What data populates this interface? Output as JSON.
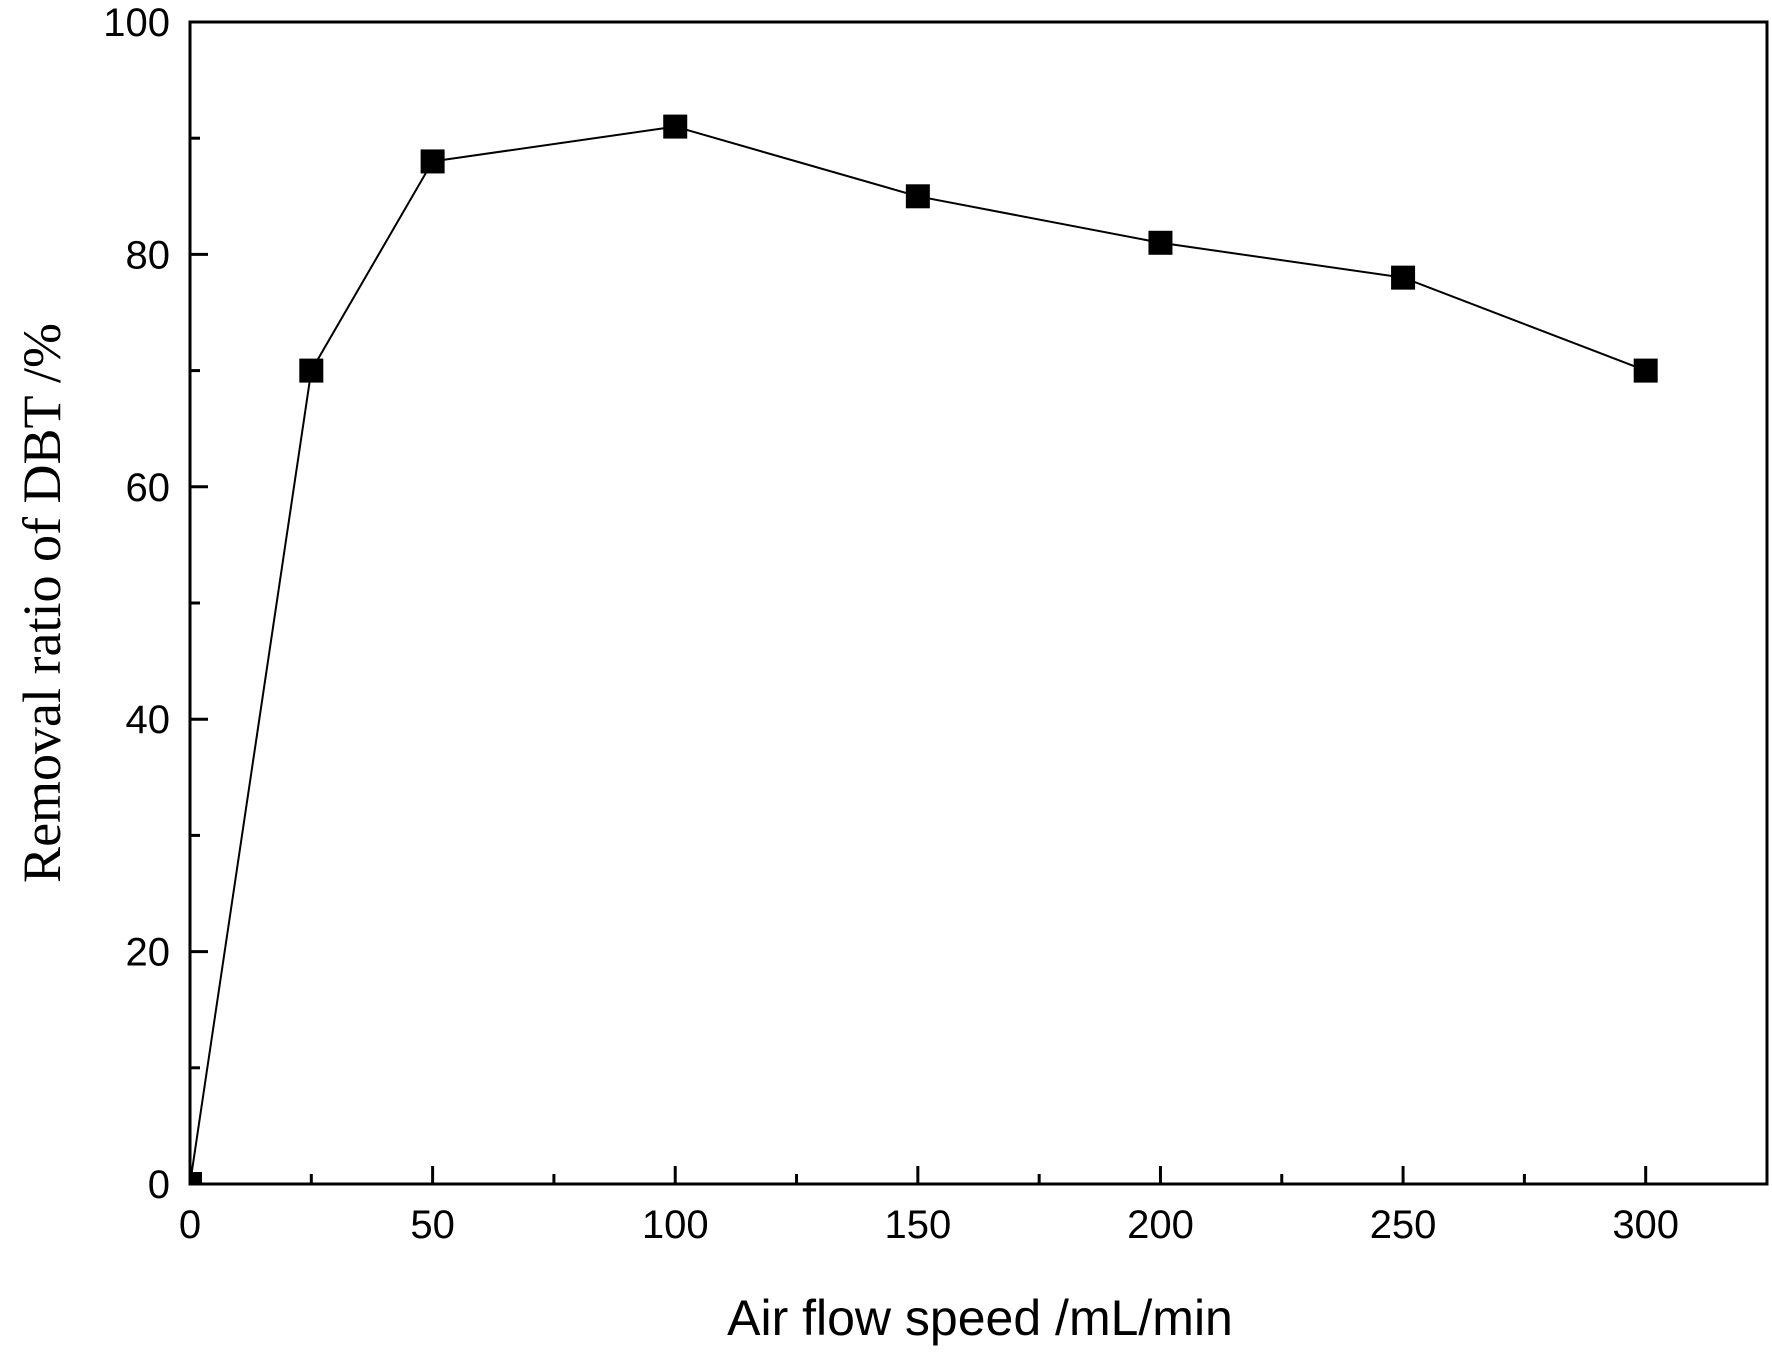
{
  "chart_data": {
    "type": "line",
    "title": "",
    "xlabel": "Air flow speed /mL/min",
    "ylabel": "Removal ratio of DBT /%",
    "xlim": [
      0,
      325
    ],
    "ylim": [
      0,
      100
    ],
    "x_major_ticks": [
      0,
      50,
      100,
      150,
      200,
      250,
      300
    ],
    "x_minor_ticks": [
      25,
      75,
      125,
      175,
      225,
      275
    ],
    "y_major_ticks": [
      0,
      20,
      40,
      60,
      80,
      100
    ],
    "y_minor_ticks": [
      10,
      30,
      50,
      70,
      90
    ],
    "x_tick_labels": [
      "0",
      "50",
      "100",
      "150",
      "200",
      "250",
      "300"
    ],
    "y_tick_labels": [
      "0",
      "20",
      "40",
      "60",
      "80",
      "100"
    ],
    "grid": false,
    "marker": "square",
    "series": [
      {
        "x": [
          0,
          25,
          50,
          100,
          150,
          200,
          250,
          300
        ],
        "y": [
          0,
          70,
          88,
          91,
          85,
          81,
          78,
          70
        ]
      }
    ],
    "colors": {
      "line": "#000000",
      "marker": "#000000",
      "axis": "#000000"
    }
  }
}
